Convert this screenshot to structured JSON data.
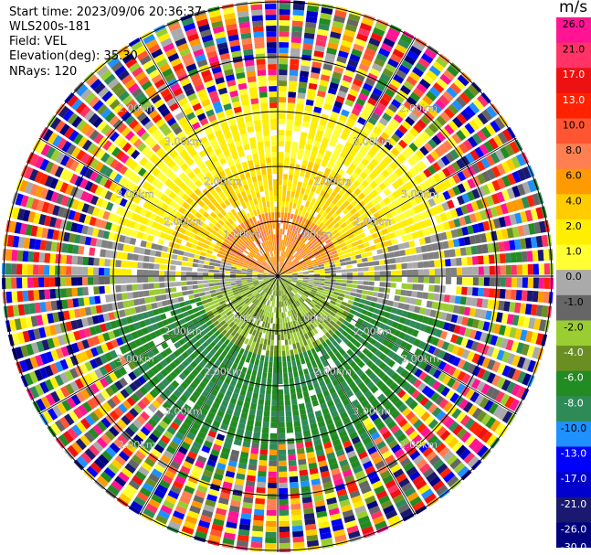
{
  "header": {
    "start_time": "Start time: 2023/09/06 20:36:37",
    "instrument": "WLS200s-181",
    "field": "Field: VEL",
    "elevation": "Elevation(deg): 35.30",
    "nrays": "NRays: 120"
  },
  "colorbar": {
    "unit": "m/s",
    "ticks": [
      "26.0",
      "21.0",
      "17.0",
      "13.0",
      "10.0",
      "8.0",
      "6.0",
      "4.0",
      "2.0",
      "1.0",
      "0.0",
      "-1.0",
      "-2.0",
      "-4.0",
      "-6.0",
      "-8.0",
      "-10.0",
      "-13.0",
      "-17.0",
      "-21.0",
      "-26.0",
      "-30.0"
    ],
    "colors": [
      "#ff1493",
      "#ff3366",
      "#ee1111",
      "#ff2200",
      "#ff5533",
      "#ff7f50",
      "#ff9a00",
      "#ffcc00",
      "#ffee00",
      "#ffff33",
      "#aaaaaa",
      "#666666",
      "#9acd32",
      "#6b8e23",
      "#228b22",
      "#2e8b57",
      "#1e90ff",
      "#0000ff",
      "#0000cd",
      "#191970",
      "#000080"
    ]
  },
  "chart_data": {
    "type": "heatmap",
    "subtype": "polar-ppi",
    "field": "VEL",
    "units": "m/s",
    "nrays": 120,
    "range_rings_km": [
      1.0,
      2.0,
      3.0,
      4.0,
      5.0
    ],
    "ring_labels": [
      "1.00km",
      "1.00km",
      "1.00km",
      "1.00km",
      "2.00km",
      "2.00km",
      "2.00km",
      "2.00km",
      "2.00km",
      "2.00km",
      "2.00km",
      "2.00km",
      "3.00km",
      "3.00km",
      "3.00km",
      "3.00km",
      "3.00km",
      "3.00km",
      "3.00km",
      "3.00km",
      "2.00km",
      "2.00km",
      "2.00km",
      "2.00km"
    ],
    "azimuth_spokes_deg": [
      0,
      30,
      60,
      90,
      120,
      150,
      180,
      210,
      240,
      270,
      300,
      330
    ],
    "color_scale_ms": [
      -30,
      -26,
      -21,
      -17,
      -13,
      -10,
      -8,
      -6,
      -4,
      -2,
      -1,
      0,
      1,
      2,
      4,
      6,
      8,
      10,
      13,
      17,
      21,
      26,
      30
    ],
    "pattern": {
      "north_sector_near_range": "positive 2 to 10 m/s (yellow/orange)",
      "south_sector_near_range": "negative -1 to -8 m/s (green)",
      "east_west_near_range": "near zero (gray)",
      "far_range": "noise (random colors)"
    }
  }
}
